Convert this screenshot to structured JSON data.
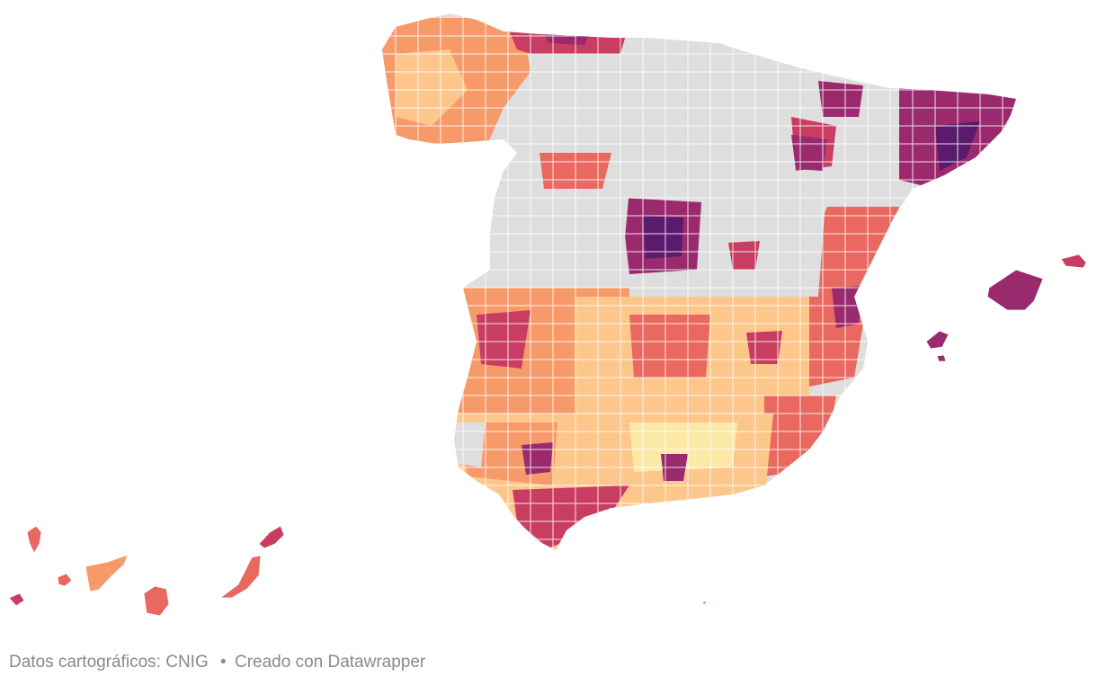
{
  "footer": {
    "source_label": "Datos cartográficos: CNIG",
    "separator": "•",
    "credit_label": "Creado con Datawrapper"
  },
  "map": {
    "type": "choropleth",
    "subject_region": "Spain municipalities",
    "no_data_color": "#dedede",
    "border_color": "#ffffff",
    "color_scale": [
      "#fde9a6",
      "#fdc68a",
      "#f79a6a",
      "#e9685f",
      "#c93d62",
      "#9a2a6d",
      "#5b1a6e"
    ]
  }
}
